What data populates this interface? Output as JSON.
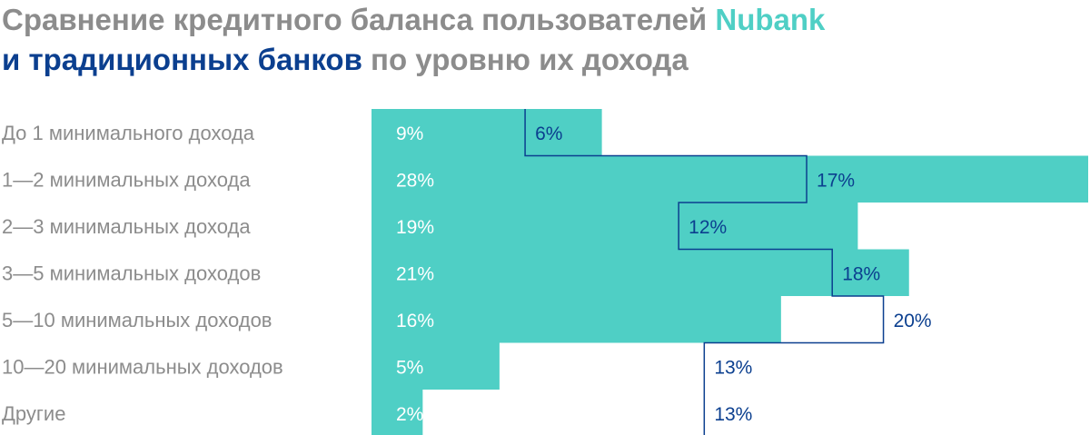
{
  "title": {
    "line1_text": "Сравнение кредитного баланса пользователей ",
    "line1_highlight": "Nubank",
    "line2_highlight": "и традиционных банков",
    "line2_text": " по уровню их дохода"
  },
  "colors": {
    "nubank": "#4fcfc5",
    "traditional": "#0b3f8f",
    "label_grey": "#8c8c8c",
    "value_on_bar": "#ffffff"
  },
  "chart_data": {
    "type": "bar",
    "orientation": "horizontal",
    "categories": [
      "До 1 минимального дохода",
      "1—2 минимальных дохода",
      "2—3 минимальных дохода",
      "3—5 минимальных доходов",
      "5—10 минимальных доходов",
      "10—20 минимальных доходов",
      "Другие"
    ],
    "series": [
      {
        "name": "Nubank",
        "values": [
          9,
          28,
          19,
          21,
          16,
          5,
          2
        ],
        "labels": [
          "9%",
          "28%",
          "19%",
          "21%",
          "16%",
          "5%",
          "2%"
        ],
        "style": "filled"
      },
      {
        "name": "традиционных банков",
        "values": [
          6,
          17,
          12,
          18,
          20,
          13,
          13
        ],
        "labels": [
          "6%",
          "17%",
          "12%",
          "18%",
          "20%",
          "13%",
          "13%"
        ],
        "style": "outline"
      }
    ],
    "xlim": [
      0,
      28
    ]
  }
}
